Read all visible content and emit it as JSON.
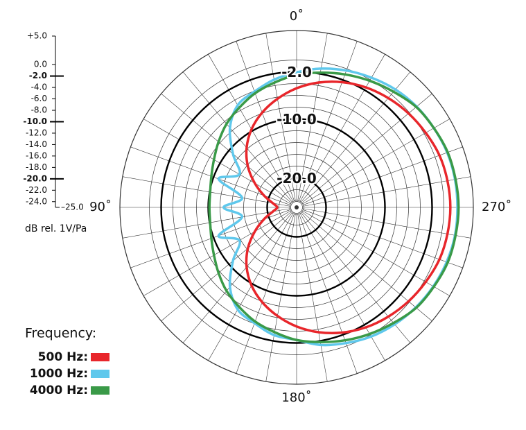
{
  "chart_data": {
    "type": "polar",
    "theta": [
      0,
      10,
      20,
      30,
      40,
      50,
      60,
      70,
      80,
      90,
      100,
      110,
      120,
      130,
      140,
      150,
      160,
      170,
      180,
      190,
      200,
      210,
      220,
      230,
      240,
      250,
      260,
      270,
      280,
      290,
      300,
      310,
      320,
      330,
      340,
      350
    ],
    "rlim": [
      -25,
      5
    ],
    "yticks": [
      {
        "value": 5,
        "label": "+5.0"
      },
      {
        "value": 0,
        "label": "0.0"
      },
      {
        "value": -2,
        "label": "-2.0"
      },
      {
        "value": -4,
        "label": "-4.0"
      },
      {
        "value": -6,
        "label": "-6.0"
      },
      {
        "value": -8,
        "label": "-8.0"
      },
      {
        "value": -10,
        "label": "-10.0"
      },
      {
        "value": -12,
        "label": "-12.0"
      },
      {
        "value": -14,
        "label": "-14.0"
      },
      {
        "value": -16,
        "label": "-16.0"
      },
      {
        "value": -18,
        "label": "-18.0"
      },
      {
        "value": -20,
        "label": "-20.0"
      },
      {
        "value": -22,
        "label": "-22.0"
      },
      {
        "value": -24,
        "label": "-24.0"
      },
      {
        "value": -25,
        "label": "–25.0"
      }
    ],
    "ylabel": "dB rel. 1V/Pa",
    "ring_labels": [
      {
        "value": -2,
        "label": "-2.0"
      },
      {
        "value": -10,
        "label": "-10.0"
      },
      {
        "value": -20,
        "label": "-20.0"
      }
    ],
    "angle_labels": [
      {
        "value": 0,
        "label": "0˚"
      },
      {
        "value": 90,
        "label": "90˚"
      },
      {
        "value": 180,
        "label": "180˚"
      },
      {
        "value": 270,
        "label": "270˚"
      }
    ],
    "legend_title": "Frequency:",
    "series": [
      {
        "name": "500 Hz:",
        "color": "#e8262b",
        "values": [
          -4.8,
          -6.3,
          -7.9,
          -9.7,
          -11.8,
          -14.2,
          -16.8,
          -19.1,
          -20.9,
          -21.7,
          -20.9,
          -19.1,
          -16.8,
          -14.2,
          -11.8,
          -9.7,
          -7.9,
          -6.3,
          -4.8,
          -3.5,
          -2.4,
          -1.5,
          -0.8,
          -0.2,
          0.3,
          0.8,
          1.0,
          1.1,
          1.0,
          0.8,
          0.3,
          -0.2,
          -0.8,
          -1.5,
          -2.4,
          -3.5
        ]
      },
      {
        "name": "1000 Hz:",
        "color": "#5fc8ec",
        "values": [
          -2.1,
          -3.0,
          -4.1,
          -5.0,
          -7.4,
          -10.9,
          -13.8,
          -10.9,
          -15.6,
          -12.6,
          -15.6,
          -10.9,
          -13.8,
          -10.9,
          -7.4,
          -5.0,
          -4.1,
          -3.0,
          -2.5,
          -1.3,
          -0.5,
          0.3,
          0.9,
          1.4,
          1.8,
          2.1,
          2.3,
          2.3,
          2.3,
          2.2,
          1.9,
          1.6,
          1.1,
          0.4,
          -0.3,
          -1.1
        ]
      },
      {
        "name": "4000 Hz:",
        "color": "#3a9a48",
        "values": [
          -2.5,
          -3.5,
          -4.4,
          -5.5,
          -6.5,
          -7.7,
          -8.8,
          -9.6,
          -10.1,
          -10.2,
          -10.1,
          -9.6,
          -8.8,
          -7.7,
          -6.5,
          -5.5,
          -4.4,
          -3.5,
          -2.5,
          -1.8,
          -1.0,
          -0.2,
          0.6,
          1.5,
          1.9,
          2.3,
          2.4,
          2.5,
          2.4,
          2.3,
          1.9,
          1.5,
          0.6,
          -0.2,
          -1.0,
          -1.8
        ]
      }
    ]
  }
}
